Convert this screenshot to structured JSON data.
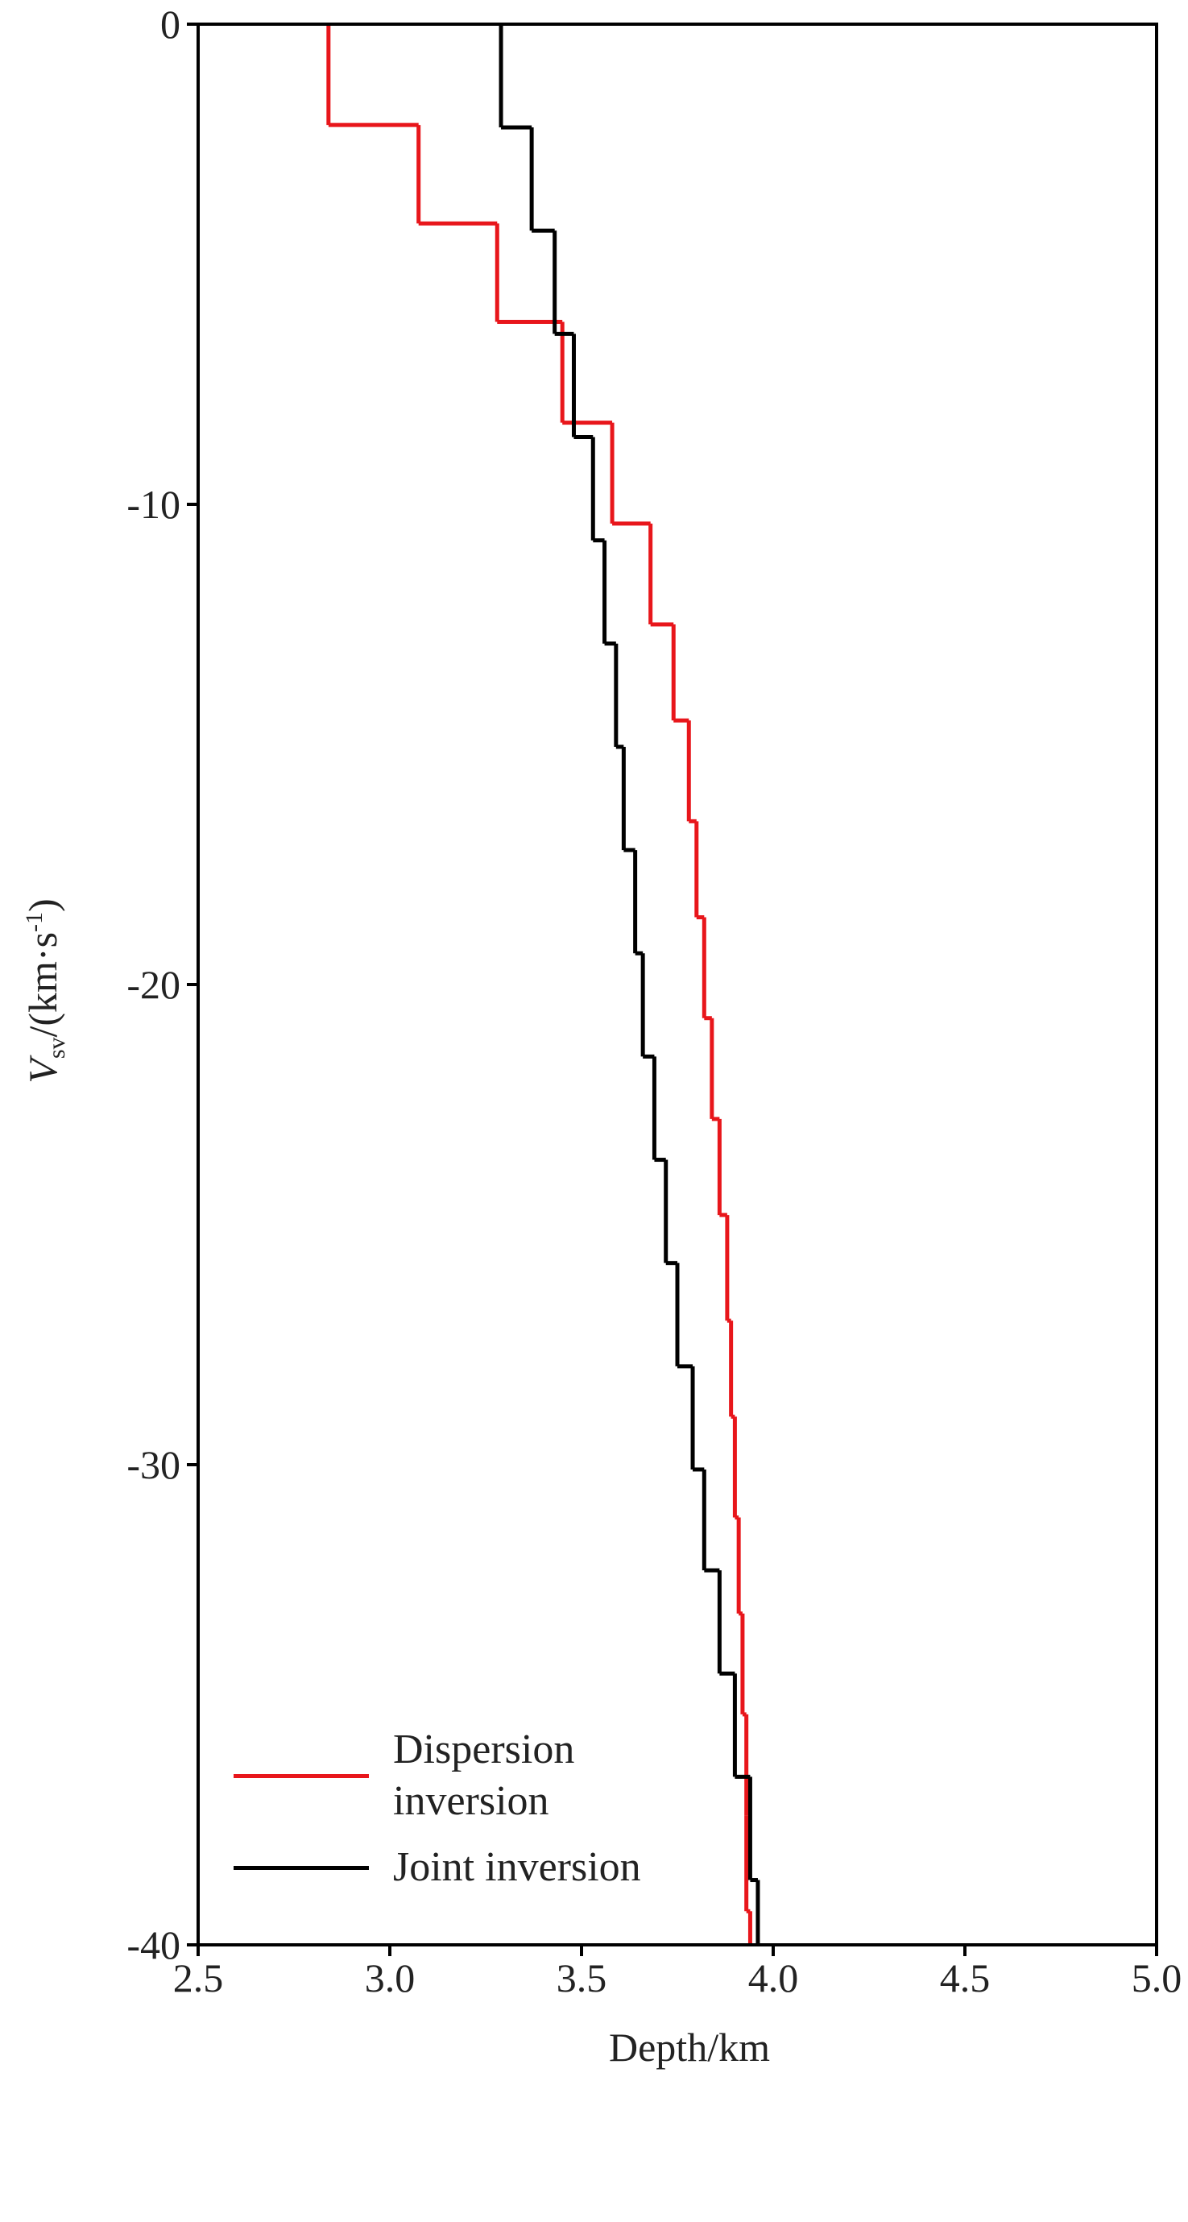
{
  "chart_data": {
    "type": "step",
    "xlabel": "Depth/km",
    "ylabel": {
      "symbol": "V",
      "sub": "sv",
      "unit": "/(km·s",
      "sup": "-1",
      "end": ")"
    },
    "xlim": [
      2.5,
      5.0
    ],
    "xticks": [
      2.5,
      {
        "value": 3,
        "label": "3.0"
      },
      3.5,
      {
        "value": 4,
        "label": "4.0"
      },
      4.5,
      {
        "value": 5,
        "label": "5.0"
      }
    ],
    "ylim": [
      -40,
      0
    ],
    "yticks": [
      0,
      -10,
      -20,
      -30,
      -40
    ],
    "grid": false,
    "legend": "bottom-left",
    "series": [
      {
        "name": "Dispersion inversion",
        "color": "#e8161b",
        "values": [
          2.84,
          3.075,
          3.28,
          3.45,
          3.58,
          3.68,
          3.74,
          3.78,
          3.8,
          3.82,
          3.84,
          3.86,
          3.88,
          3.89,
          3.9,
          3.91,
          3.92,
          3.93,
          3.93,
          3.94
        ],
        "depths": [
          0,
          -2.1,
          -4.15,
          -6.2,
          -8.3,
          -10.4,
          -12.5,
          -14.5,
          -16.6,
          -18.6,
          -20.7,
          -22.8,
          -24.8,
          -27.0,
          -29.0,
          -31.1,
          -33.1,
          -35.2,
          -37.3,
          -39.3,
          -40
        ]
      },
      {
        "name": "Joint inversion",
        "color": "#000000",
        "values": [
          3.29,
          3.37,
          3.43,
          3.48,
          3.53,
          3.56,
          3.59,
          3.61,
          3.64,
          3.66,
          3.69,
          3.72,
          3.75,
          3.79,
          3.82,
          3.86,
          3.9,
          3.94,
          3.96
        ],
        "depths": [
          0,
          -2.15,
          -4.3,
          -6.45,
          -8.6,
          -10.75,
          -12.9,
          -15.05,
          -17.2,
          -19.35,
          -21.5,
          -23.65,
          -25.8,
          -27.95,
          -30.1,
          -32.2,
          -34.35,
          -36.5,
          -38.65,
          -40
        ]
      }
    ]
  }
}
